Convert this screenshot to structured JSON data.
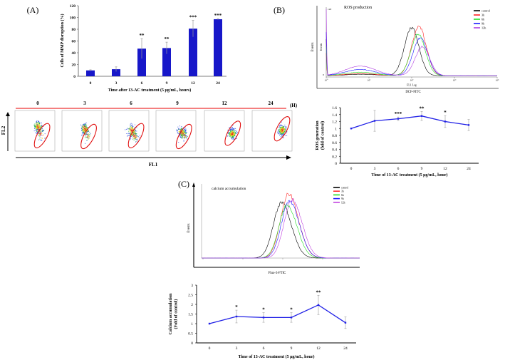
{
  "chart_data": [
    {
      "panel": "A",
      "panel_label": "(A)",
      "type": "bar",
      "categories": [
        "0",
        "3",
        "6",
        "9",
        "12",
        "24"
      ],
      "values": [
        10,
        12,
        47,
        48,
        81,
        97
      ],
      "errors": [
        1,
        4,
        17,
        10,
        14,
        1
      ],
      "significance": [
        "",
        "",
        "**",
        "**",
        "***",
        "***"
      ],
      "ylabel": "Cells of MMP disruption (%)",
      "xlabel": "Time after 13-AC  treatment (5 μg/mL, hours)",
      "ylim": [
        0,
        120
      ],
      "yticks": [
        0,
        20,
        40,
        60,
        80,
        100,
        120
      ],
      "color": "#1717c9"
    },
    {
      "panel": "B",
      "panel_label": "(B)",
      "type": "line",
      "subtype": "histogram",
      "title": "ROS production",
      "xlabel": "DCF-FITC",
      "inner_xlabel": "FL1 Log",
      "ylabel": "Events",
      "inner_ylabel": "Events",
      "xticks": [
        "10⁰",
        "10¹",
        "10²",
        "10³",
        "10⁴"
      ],
      "ymax_label": "120",
      "yzero_label": "0",
      "legend_position": "top-right",
      "series": [
        {
          "name": "control",
          "color": "#000000",
          "peak_log": 2.0,
          "peak": 0.7,
          "low_peak": 0.02,
          "spike": 0.55
        },
        {
          "name": "3h",
          "color": "#ff2020",
          "peak_log": 2.17,
          "peak": 0.72,
          "low_peak": 0.03,
          "spike": 0.35
        },
        {
          "name": "6h",
          "color": "#22dd22",
          "peak_log": 2.15,
          "peak": 0.6,
          "low_peak": 0.05,
          "spike": 0.45
        },
        {
          "name": "9h",
          "color": "#1a1aff",
          "peak_log": 2.2,
          "peak": 0.55,
          "low_peak": 0.09,
          "spike": 0.65
        },
        {
          "name": "12h",
          "color": "#b040e0",
          "peak_log": 2.25,
          "peak": 0.42,
          "low_peak": 0.14,
          "spike": 1.0
        }
      ]
    },
    {
      "panel": "H",
      "panel_label": "(H)",
      "type": "scatter",
      "time_labels": [
        "0",
        "3",
        "6",
        "9",
        "12",
        "24"
      ],
      "xlabel": "FL1",
      "ylabel": "FL2"
    },
    {
      "panel": "ROS",
      "type": "line",
      "categories": [
        "0",
        "3",
        "6",
        "9",
        "12",
        "24"
      ],
      "values": [
        1.0,
        1.22,
        1.28,
        1.36,
        1.2,
        1.1
      ],
      "errors": [
        0,
        0.3,
        0.05,
        0.13,
        0.17,
        0.16
      ],
      "significance": [
        "",
        "",
        "***",
        "**",
        "*",
        ""
      ],
      "ylabel": [
        "ROS generation",
        "(fold of control)"
      ],
      "xlabel": "Time of 13-AC treatment (5 μg/mL, hour)",
      "ylim": [
        0,
        1.6
      ],
      "yticks": [
        "0",
        "0.2",
        "0.4",
        "0.6",
        "0.8",
        "1",
        "1.2",
        "1.4",
        "1.6"
      ],
      "color": "#1f1fe6"
    },
    {
      "panel": "C",
      "panel_label": "(C)",
      "type": "line",
      "subtype": "histogram",
      "title": "calcium accumulation",
      "xlabel": "Fluo-3-FTIC",
      "ylabel": "Events",
      "legend_position": "top-right",
      "series": [
        {
          "name": "control",
          "color": "#000000",
          "peak_log": 2.0,
          "peak": 0.86
        },
        {
          "name": "3h",
          "color": "#ff3030",
          "peak_log": 2.18,
          "peak": 1.0
        },
        {
          "name": "6h",
          "color": "#22dd22",
          "peak_log": 2.14,
          "peak": 0.82
        },
        {
          "name": "9h",
          "color": "#1a1aff",
          "peak_log": 2.2,
          "peak": 0.88
        },
        {
          "name": "12h",
          "color": "#c040e0",
          "peak_log": 2.27,
          "peak": 0.91
        }
      ]
    },
    {
      "panel": "Ca",
      "type": "line",
      "categories": [
        "0",
        "3",
        "6",
        "9",
        "12",
        "24"
      ],
      "values": [
        1.0,
        1.37,
        1.32,
        1.32,
        1.97,
        1.05
      ],
      "errors": [
        0,
        0.33,
        0.25,
        0.25,
        0.5,
        0.3
      ],
      "significance": [
        "",
        "*",
        "*",
        "*",
        "**",
        ""
      ],
      "ylabel": [
        "Calcium accumulation",
        "(Fold of control)"
      ],
      "xlabel": "Time of 13-AC treatment (5 μg/mL, hour)",
      "ylim": [
        0,
        3
      ],
      "yticks": [
        "0",
        "0.5",
        "1",
        "1.5",
        "2",
        "2.5",
        "3"
      ],
      "color": "#1f1fe6"
    }
  ]
}
